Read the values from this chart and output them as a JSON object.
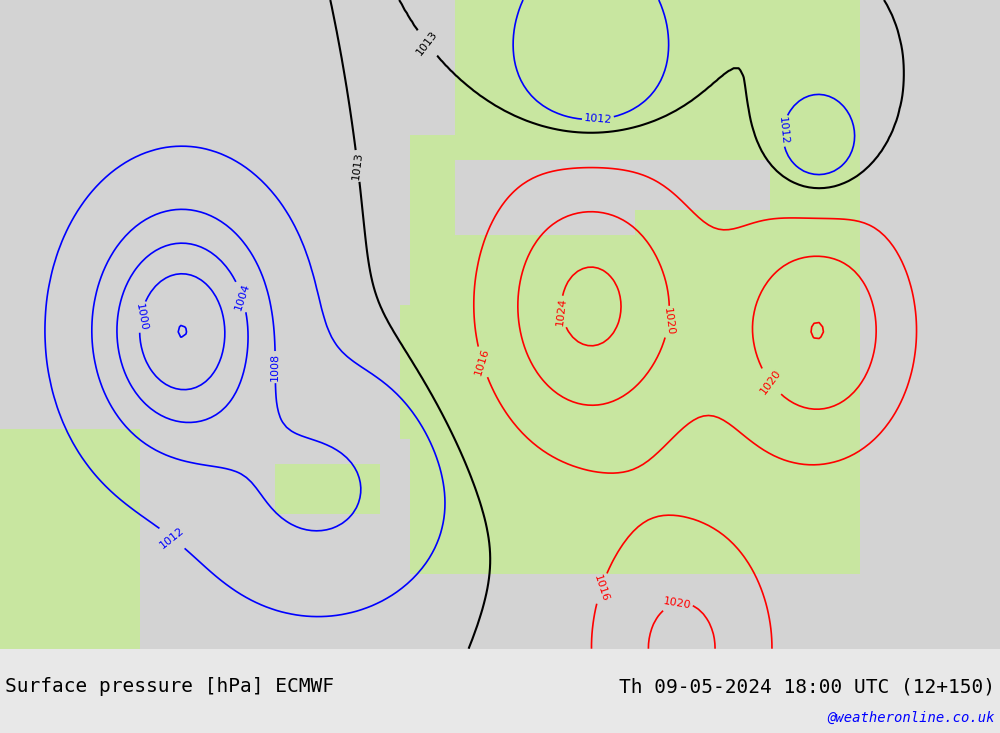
{
  "title_left": "Surface pressure [hPa] ECMWF",
  "title_right": "Th 09-05-2024 18:00 UTC (12+150)",
  "watermark": "@weatheronline.co.uk",
  "bg_ocean": "#d3d3d3",
  "bg_land_green": "#c8e6a0",
  "bg_land_gray": "#b0b0b0",
  "contour_colors": {
    "below_1013": "#0000ff",
    "above_1013": "#ff0000",
    "at_1013": "#000000"
  },
  "title_fontsize": 14,
  "watermark_fontsize": 10,
  "footer_bg": "#e8e8e8"
}
